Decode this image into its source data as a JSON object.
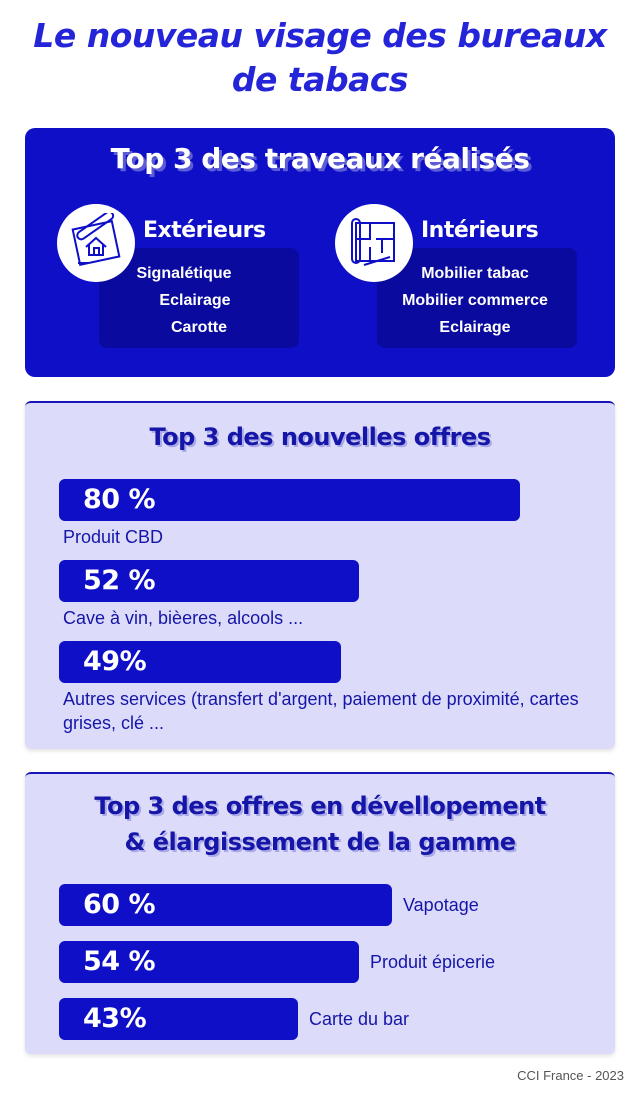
{
  "title": {
    "line1": "Le nouveau visage des bureaux",
    "line2": "de tabacs"
  },
  "travaux": {
    "title": "Top 3 des traveaux réalisés",
    "exterieurs": {
      "heading": "Extérieurs",
      "icon": "house-blueprint-icon",
      "items": [
        "Signalétique",
        "Eclairage",
        "Carotte"
      ]
    },
    "interieurs": {
      "heading": "Intérieurs",
      "icon": "floorplan-blueprint-icon",
      "items": [
        "Mobilier tabac",
        "Mobilier commerce",
        "Eclairage"
      ]
    }
  },
  "chart_data": [
    {
      "type": "bar",
      "title": "Top 3 des nouvelles offres",
      "categories": [
        "Produit CBD",
        "Cave à vin, bièeres, alcools ...",
        "Autres services (transfert d'argent, paiement de proximité, cartes grises, clé ..."
      ],
      "values": [
        80,
        52,
        49
      ],
      "value_labels": [
        "80 %",
        "52 %",
        "49%"
      ],
      "unit": "%"
    },
    {
      "type": "bar",
      "title": "Top 3 des offres en dévellopement & élargissement de la gamme",
      "title_lines": [
        "Top 3 des offres en dévellopement",
        "& élargissement de la gamme"
      ],
      "categories": [
        "Vapotage",
        "Produit épicerie",
        "Carte du bar"
      ],
      "values": [
        60,
        54,
        43
      ],
      "value_labels": [
        "60 %",
        "54 %",
        "43%"
      ],
      "unit": "%"
    }
  ],
  "colors": {
    "primary": "#0f0fc7",
    "title": "#2424d8",
    "panel": "#dcdcfa"
  },
  "footer": "CCI France - 2023"
}
